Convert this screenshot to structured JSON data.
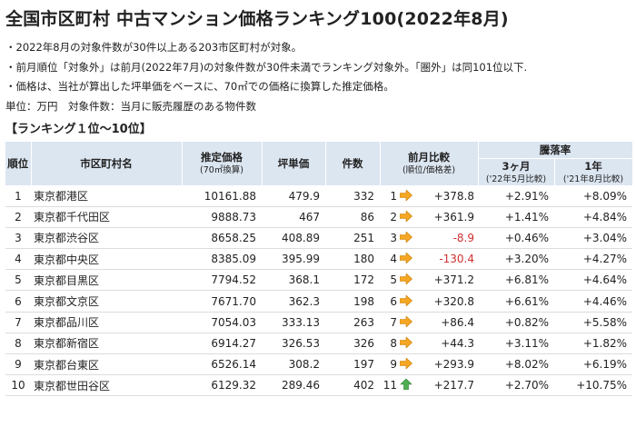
{
  "title": "全国市区町村 中古マンション価格ランキング100(2022年8月)",
  "notes": [
    "・2022年8月の対象件数が30件以上ある203市区町村が対象。",
    "・前月順位「対象外」は前月(2022年7月)の対象件数が30件未満でランキング対象外。「圏外」は同101位以下.",
    "・価格は、当社が算出した坪単価をベースに、70㎡での価格に換算した推定価格。",
    "単位：万円　対象件数：当月に販売履歴のある物件数"
  ],
  "section_title": "【ランキング１位〜10位】",
  "headers": {
    "rank": "順位",
    "name": "市区町村名",
    "price": "推定価格",
    "price_sub": "(70㎡換算)",
    "tsubo": "坪単価",
    "count": "件数",
    "prev": "前月比較",
    "prev_sub": "(順位/価格差)",
    "rate": "騰落率",
    "rate3m": "3ヶ月",
    "rate3m_sub": "('22年5月比較)",
    "rate1y": "1年",
    "rate1y_sub": "('21年8月比較)"
  },
  "arrow_colors": {
    "flat": "#f5a623",
    "up": "#4caf50"
  },
  "rows": [
    {
      "rank": "1",
      "name": "東京都港区",
      "price": "10161.88",
      "tsubo": "479.9",
      "count": "332",
      "prev_rank": "1",
      "arrow": "flat",
      "diff": "+378.8",
      "neg": false,
      "r3": "+2.91%",
      "r1": "+8.09%"
    },
    {
      "rank": "2",
      "name": "東京都千代田区",
      "price": "9888.73",
      "tsubo": "467",
      "count": "86",
      "prev_rank": "2",
      "arrow": "flat",
      "diff": "+361.9",
      "neg": false,
      "r3": "+1.41%",
      "r1": "+4.84%"
    },
    {
      "rank": "3",
      "name": "東京都渋谷区",
      "price": "8658.25",
      "tsubo": "408.89",
      "count": "251",
      "prev_rank": "3",
      "arrow": "flat",
      "diff": "-8.9",
      "neg": true,
      "r3": "+0.46%",
      "r1": "+3.04%"
    },
    {
      "rank": "4",
      "name": "東京都中央区",
      "price": "8385.09",
      "tsubo": "395.99",
      "count": "180",
      "prev_rank": "4",
      "arrow": "flat",
      "diff": "-130.4",
      "neg": true,
      "r3": "+3.20%",
      "r1": "+4.27%"
    },
    {
      "rank": "5",
      "name": "東京都目黒区",
      "price": "7794.52",
      "tsubo": "368.1",
      "count": "172",
      "prev_rank": "5",
      "arrow": "flat",
      "diff": "+371.2",
      "neg": false,
      "r3": "+6.81%",
      "r1": "+4.64%"
    },
    {
      "rank": "6",
      "name": "東京都文京区",
      "price": "7671.70",
      "tsubo": "362.3",
      "count": "198",
      "prev_rank": "6",
      "arrow": "flat",
      "diff": "+320.8",
      "neg": false,
      "r3": "+6.61%",
      "r1": "+4.46%"
    },
    {
      "rank": "7",
      "name": "東京都品川区",
      "price": "7054.03",
      "tsubo": "333.13",
      "count": "263",
      "prev_rank": "7",
      "arrow": "flat",
      "diff": "+86.4",
      "neg": false,
      "r3": "+0.82%",
      "r1": "+5.58%"
    },
    {
      "rank": "8",
      "name": "東京都新宿区",
      "price": "6914.27",
      "tsubo": "326.53",
      "count": "326",
      "prev_rank": "8",
      "arrow": "flat",
      "diff": "+44.3",
      "neg": false,
      "r3": "+3.11%",
      "r1": "+1.82%"
    },
    {
      "rank": "9",
      "name": "東京都台東区",
      "price": "6526.14",
      "tsubo": "308.2",
      "count": "197",
      "prev_rank": "9",
      "arrow": "flat",
      "diff": "+293.9",
      "neg": false,
      "r3": "+8.02%",
      "r1": "+6.19%"
    },
    {
      "rank": "10",
      "name": "東京都世田谷区",
      "price": "6129.32",
      "tsubo": "289.46",
      "count": "402",
      "prev_rank": "11",
      "arrow": "up",
      "diff": "+217.7",
      "neg": false,
      "r3": "+2.70%",
      "r1": "+10.75%"
    }
  ]
}
